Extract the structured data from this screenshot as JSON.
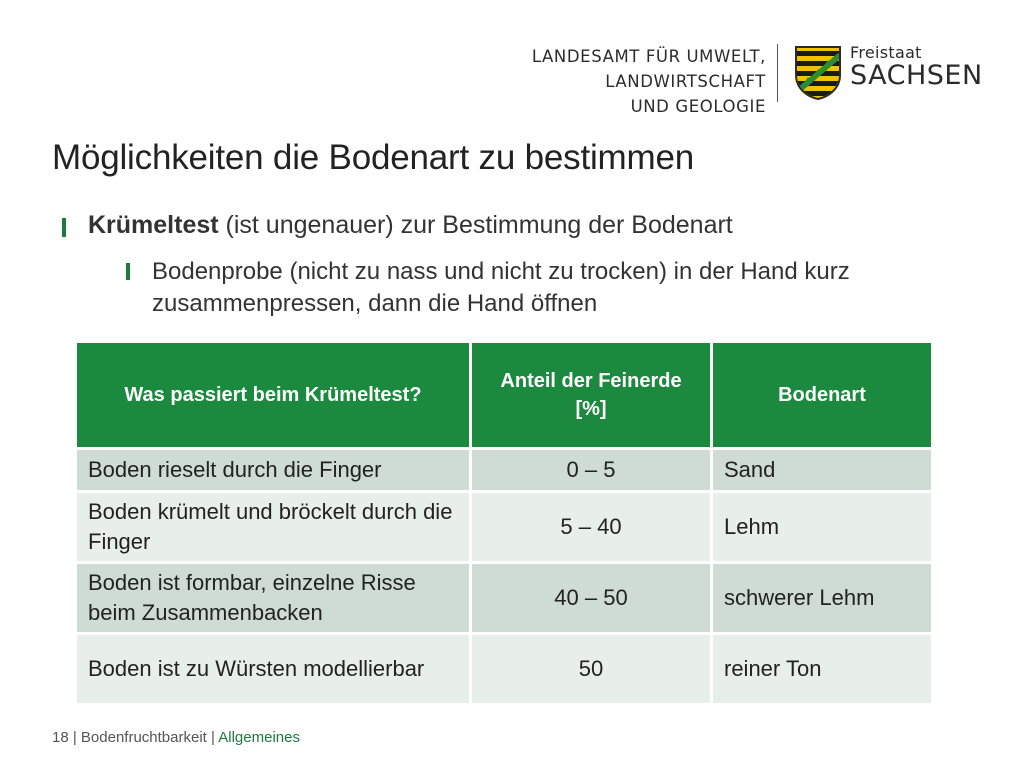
{
  "header": {
    "agency_lines": [
      "LANDESAMT FÜR UMWELT,",
      "LANDWIRTSCHAFT",
      "UND GEOLOGIE"
    ],
    "state_small": "Freistaat",
    "state_big": "SACHSEN",
    "crest_icon": "saxony-coat-of-arms-icon"
  },
  "slide": {
    "title": "Möglichkeiten die Bodenart zu bestimmen",
    "bullet1_bold": "Krümeltest",
    "bullet1_rest": " (ist ungenauer) zur Bestimmung der Bodenart",
    "bullet2": "Bodenprobe (nicht zu nass und nicht zu trocken) in der Hand kurz zusammenpressen, dann die Hand öffnen"
  },
  "table": {
    "headers": [
      "Was passiert beim Krümeltest?",
      "Anteil der Feinerde [%]",
      "Bodenart"
    ],
    "rows": [
      [
        "Boden rieselt durch die Finger",
        "0 – 5",
        "Sand"
      ],
      [
        "Boden krümelt und bröckelt durch die Finger",
        "5 – 40",
        "Lehm"
      ],
      [
        "Boden ist formbar, einzelne Risse beim Zusammenbacken",
        "40 – 50",
        "schwerer Lehm"
      ],
      [
        "Boden ist zu Würsten modellierbar",
        "50",
        "reiner Ton"
      ]
    ]
  },
  "footer": {
    "page": "18",
    "section": "Bodenfruchtbarkeit",
    "topic": "Allgemeines"
  },
  "colors": {
    "accent": "#1b8a3e",
    "row_dark": "#cfdcd3",
    "row_light": "#e8efea"
  }
}
